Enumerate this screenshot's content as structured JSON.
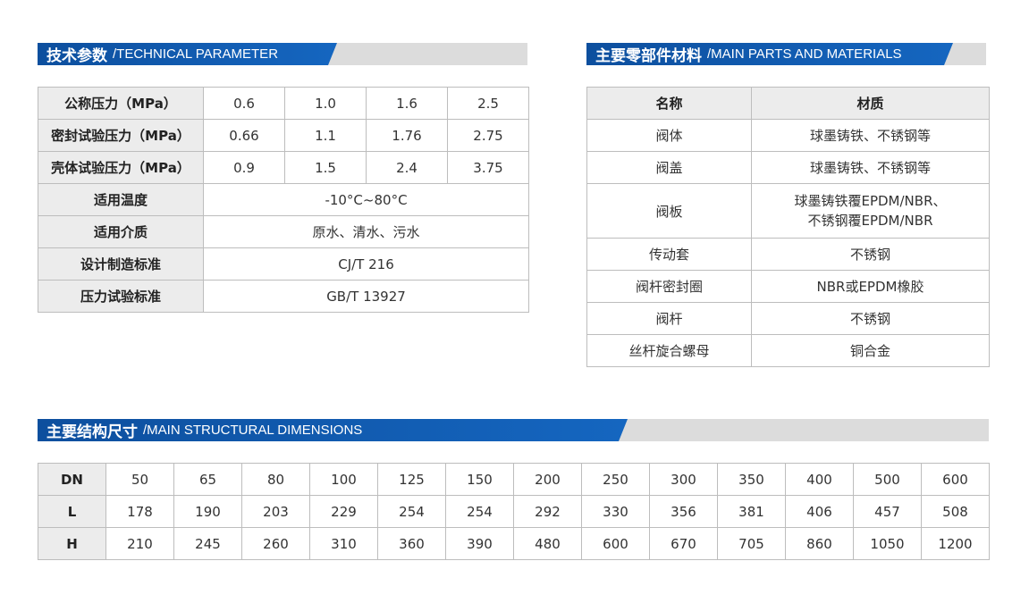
{
  "colors": {
    "banner_blue": "#0d4f9e",
    "banner_gray": "#dcdcdc",
    "header_bg": "#ececec",
    "border": "#bdbdbd"
  },
  "tech": {
    "title_zh": "技术参数",
    "title_en": "/TECHNICAL PARAMETER",
    "pressure_rows": [
      {
        "label": "公称压力（MPa）",
        "values": [
          "0.6",
          "1.0",
          "1.6",
          "2.5"
        ]
      },
      {
        "label": "密封试验压力（MPa）",
        "values": [
          "0.66",
          "1.1",
          "1.76",
          "2.75"
        ]
      },
      {
        "label": "壳体试验压力（MPa）",
        "values": [
          "0.9",
          "1.5",
          "2.4",
          "3.75"
        ]
      }
    ],
    "span_rows": [
      {
        "label": "适用温度",
        "value": "-10°C~80°C"
      },
      {
        "label": "适用介质",
        "value": "原水、清水、污水"
      },
      {
        "label": "设计制造标准",
        "value": "CJ/T 216"
      },
      {
        "label": "压力试验标准",
        "value": "GB/T 13927"
      }
    ]
  },
  "parts": {
    "title_zh": "主要零部件材料",
    "title_en": "/MAIN PARTS AND MATERIALS",
    "headers": [
      "名称",
      "材质"
    ],
    "rows": [
      {
        "name": "阀体",
        "material": "球墨铸铁、不锈钢等"
      },
      {
        "name": "阀盖",
        "material": "球墨铸铁、不锈钢等"
      },
      {
        "name": "阀板",
        "material": "球墨铸铁覆EPDM/NBR、",
        "material2": "不锈钢覆EPDM/NBR"
      },
      {
        "name": "传动套",
        "material": "不锈钢"
      },
      {
        "name": "阀杆密封圈",
        "material": "NBR或EPDM橡胶"
      },
      {
        "name": "阀杆",
        "material": "不锈钢"
      },
      {
        "name": "丝杆旋合螺母",
        "material": "铜合金"
      }
    ]
  },
  "dims": {
    "title_zh": "主要结构尺寸",
    "title_en": "/MAIN STRUCTURAL DIMENSIONS",
    "rows": [
      {
        "label": "DN",
        "values": [
          "50",
          "65",
          "80",
          "100",
          "125",
          "150",
          "200",
          "250",
          "300",
          "350",
          "400",
          "500",
          "600"
        ]
      },
      {
        "label": "L",
        "values": [
          "178",
          "190",
          "203",
          "229",
          "254",
          "254",
          "292",
          "330",
          "356",
          "381",
          "406",
          "457",
          "508"
        ]
      },
      {
        "label": "H",
        "values": [
          "210",
          "245",
          "260",
          "310",
          "360",
          "390",
          "480",
          "600",
          "670",
          "705",
          "860",
          "1050",
          "1200"
        ]
      }
    ]
  }
}
